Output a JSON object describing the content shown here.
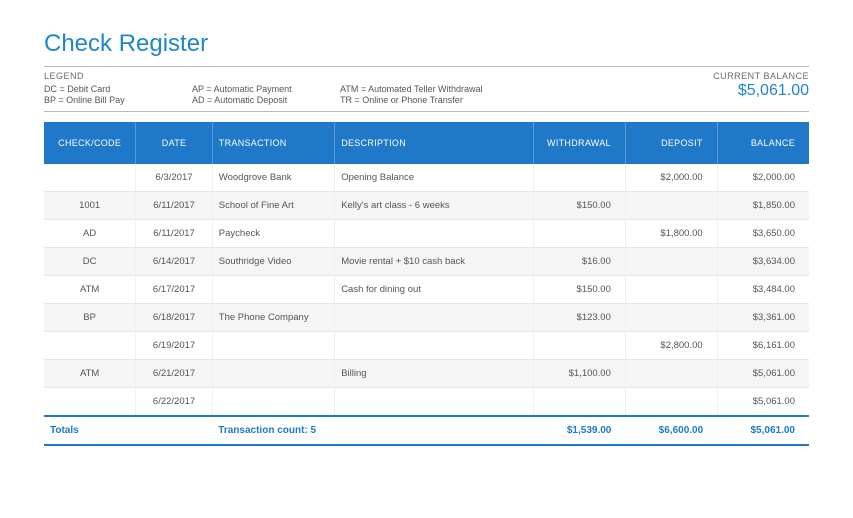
{
  "title": "Check Register",
  "legend": {
    "heading": "LEGEND",
    "items": [
      "DC = Debit Card",
      "AP = Automatic Payment",
      "ATM = Automated Teller Withdrawal",
      "BP = Online Bill Pay",
      "AD = Automatic Deposit",
      "TR = Online or Phone Transfer"
    ]
  },
  "current_balance": {
    "label": "CURRENT BALANCE",
    "value": "$5,061.00"
  },
  "columns": [
    "CHECK/CODE",
    "DATE",
    "TRANSACTION",
    "DESCRIPTION",
    "WITHDRAWAL",
    "DEPOSIT",
    "BALANCE"
  ],
  "rows": [
    {
      "code": "",
      "date": "6/3/2017",
      "tx": "Woodgrove Bank",
      "desc": "Opening Balance",
      "w": "",
      "d": "$2,000.00",
      "b": "$2,000.00",
      "striped": false
    },
    {
      "code": "1001",
      "date": "6/11/2017",
      "tx": "School of Fine Art",
      "desc": "Kelly's art class - 6 weeks",
      "w": "$150.00",
      "d": "",
      "b": "$1,850.00",
      "striped": true
    },
    {
      "code": "AD",
      "date": "6/11/2017",
      "tx": "Paycheck",
      "desc": "",
      "w": "",
      "d": "$1,800.00",
      "b": "$3,650.00",
      "striped": false
    },
    {
      "code": "DC",
      "date": "6/14/2017",
      "tx": "Southridge Video",
      "desc": "Movie rental + $10 cash back",
      "w": "$16.00",
      "d": "",
      "b": "$3,634.00",
      "striped": true
    },
    {
      "code": "ATM",
      "date": "6/17/2017",
      "tx": "",
      "desc": "Cash for dining out",
      "w": "$150.00",
      "d": "",
      "b": "$3,484.00",
      "striped": false
    },
    {
      "code": "BP",
      "date": "6/18/2017",
      "tx": "The Phone Company",
      "desc": "",
      "w": "$123.00",
      "d": "",
      "b": "$3,361.00",
      "striped": true
    },
    {
      "code": "",
      "date": "6/19/2017",
      "tx": "",
      "desc": "",
      "w": "",
      "d": "$2,800.00",
      "b": "$6,161.00",
      "striped": false
    },
    {
      "code": "ATM",
      "date": "6/21/2017",
      "tx": "",
      "desc": "Billing",
      "w": "$1,100.00",
      "d": "",
      "b": "$5,061.00",
      "striped": true
    },
    {
      "code": "",
      "date": "6/22/2017",
      "tx": "",
      "desc": "",
      "w": "",
      "d": "",
      "b": "$5,061.00",
      "striped": false
    }
  ],
  "totals": {
    "label": "Totals",
    "count_label": "Transaction count: 5",
    "withdrawal": "$1,539.00",
    "deposit": "$6,600.00",
    "balance": "$5,061.00"
  },
  "style": {
    "brand_blue": "#1f78c8",
    "title_blue": "#1f87c9",
    "row_stripe": "#f5f5f5",
    "border_gray": "#e6e6e6"
  }
}
